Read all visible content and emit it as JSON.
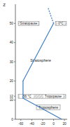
{
  "chart_data": {
    "type": "line",
    "y_label": "Z",
    "x": [
      15,
      -56,
      -56,
      0
    ],
    "series": [
      {
        "color": "#3a7cc4",
        "line_style": "solid",
        "x": [
          15,
          -56,
          -56,
          0
        ],
        "values": [
          0,
          11,
          20,
          50
        ]
      },
      {
        "color": "#3a7cc4",
        "line_style": "dashed",
        "x": [
          0,
          -10
        ],
        "values": [
          50,
          58
        ]
      }
    ],
    "xlim": [
      -70,
      25
    ],
    "xticks": [
      -60,
      -40,
      -20,
      0,
      20
    ],
    "ylim": [
      0,
      60
    ],
    "yticks": [
      0,
      10,
      12,
      20,
      30,
      40,
      50
    ],
    "annotations": [
      {
        "text": "Stratopause",
        "value": 50
      },
      {
        "text": "0°C"
      },
      {
        "text": "Stratosphere"
      },
      {
        "text": "-56 °C"
      },
      {
        "text": "Tropopause",
        "value": 12
      },
      {
        "text": "Troposphere"
      }
    ]
  }
}
